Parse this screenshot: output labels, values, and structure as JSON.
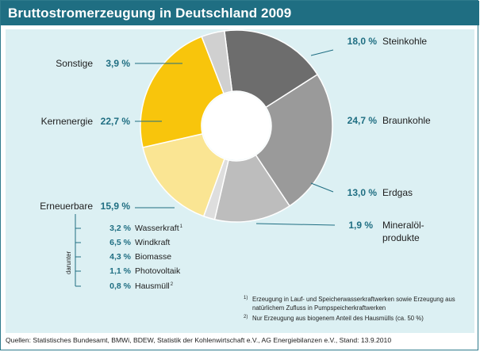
{
  "chart_data": {
    "type": "pie",
    "title": "Bruttostromerzeugung in Deutschland 2009",
    "donut": true,
    "slices": [
      {
        "label": "Steinkohle",
        "value": 18.0,
        "value_text": "18,0 %",
        "color": "#6d6d6d"
      },
      {
        "label": "Braunkohle",
        "value": 24.7,
        "value_text": "24,7 %",
        "color": "#9a9a9a"
      },
      {
        "label": "Erdgas",
        "value": 13.0,
        "value_text": "13,0 %",
        "color": "#bdbdbd"
      },
      {
        "label": "Mineralöl-",
        "label_line2": "produkte",
        "value": 1.9,
        "value_text": "1,9 %",
        "color": "#dedede"
      },
      {
        "label": "Erneuerbare",
        "value": 15.9,
        "value_text": "15,9 %",
        "color": "#fae593"
      },
      {
        "label": "Kernenergie",
        "value": 22.7,
        "value_text": "22,7 %",
        "color": "#f8c50c"
      },
      {
        "label": "Sonstige",
        "value": 3.9,
        "value_text": "3,9 %",
        "color": "#d0d0d0"
      }
    ],
    "renewables_breakdown": {
      "group_label": "darunter",
      "items": [
        {
          "label": "Wasserkraft",
          "note_ref": "1)",
          "value": 3.2,
          "value_text": "3,2 %"
        },
        {
          "label": "Windkraft",
          "note_ref": "",
          "value": 6.5,
          "value_text": "6,5 %"
        },
        {
          "label": "Biomasse",
          "note_ref": "",
          "value": 4.3,
          "value_text": "4,3 %"
        },
        {
          "label": "Photovoltaik",
          "note_ref": "",
          "value": 1.1,
          "value_text": "1,1 %"
        },
        {
          "label": "Hausmüll",
          "note_ref": "2)",
          "value": 0.8,
          "value_text": "0,8 %"
        }
      ]
    },
    "footnotes": [
      {
        "mark": "1)",
        "line1": "Erzeugung in Lauf- und Speicherwasserkraftwerken sowie Erzeugung aus",
        "line2": "natürlichem Zufluss in Pumpspeicherkraftwerken"
      },
      {
        "mark": "2)",
        "line1": "Nur Erzeugung aus biogenem Anteil des Hausmülls (ca. 50 %)",
        "line2": ""
      }
    ]
  },
  "footer": {
    "source": "Quellen: Statistisches Bundesamt, BMWi, BDEW, Statistik der Kohlenwirtschaft e.V., AG Energiebilanzen e.V., Stand: 13.9.2010"
  },
  "colors": {
    "accent": "#1f6e82",
    "panel_background": "#dcf0f3",
    "leader_line": "#1f6e82"
  }
}
